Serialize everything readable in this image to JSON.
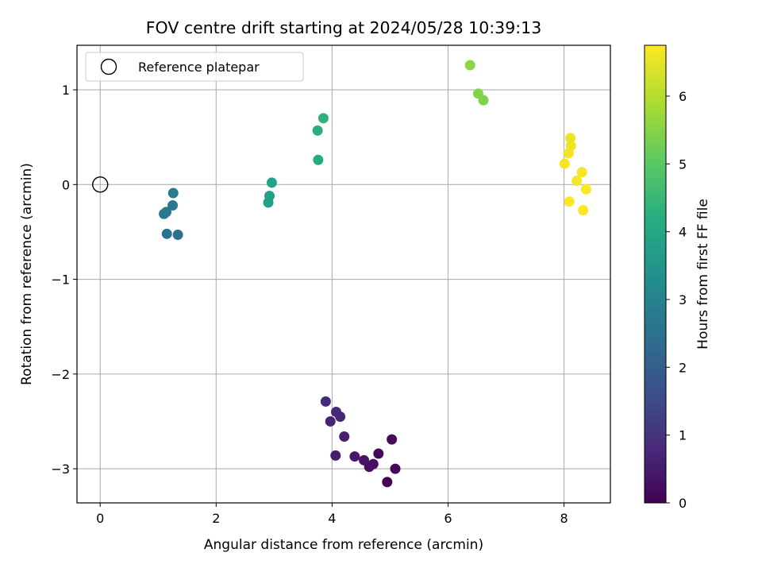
{
  "chart_data": {
    "type": "scatter",
    "title": "FOV centre drift starting at 2024/05/28 10:39:13",
    "xlabel": "Angular distance from reference (arcmin)",
    "ylabel": "Rotation from reference (arcmin)",
    "xlim": [
      -0.4,
      8.8
    ],
    "ylim": [
      -3.36,
      1.47
    ],
    "xticks": [
      0,
      2,
      4,
      6,
      8
    ],
    "yticks": [
      -3,
      -2,
      -1,
      0,
      1
    ],
    "xtick_labels": [
      "0",
      "2",
      "4",
      "6",
      "8"
    ],
    "ytick_labels": [
      "−3",
      "−2",
      "−1",
      "0",
      "1"
    ],
    "grid": true,
    "legend": {
      "label": "Reference platepar",
      "location": "upper left",
      "marker": "open-circle"
    },
    "reference_point": {
      "x": 0,
      "y": 0
    },
    "colorbar": {
      "label": "Hours from first FF file",
      "colormap": "viridis",
      "range": [
        0,
        6.75
      ],
      "ticks": [
        0,
        1,
        2,
        3,
        4,
        5,
        6
      ],
      "tick_labels": [
        "0",
        "1",
        "2",
        "3",
        "4",
        "5",
        "6"
      ]
    },
    "points": [
      {
        "x": 4.95,
        "y": -3.14,
        "hours": 0.05
      },
      {
        "x": 5.09,
        "y": -3.0,
        "hours": 0.1
      },
      {
        "x": 4.8,
        "y": -2.84,
        "hours": 0.15
      },
      {
        "x": 5.03,
        "y": -2.69,
        "hours": 0.2
      },
      {
        "x": 4.71,
        "y": -2.95,
        "hours": 0.25
      },
      {
        "x": 4.64,
        "y": -2.98,
        "hours": 0.3
      },
      {
        "x": 4.55,
        "y": -2.91,
        "hours": 0.35
      },
      {
        "x": 4.39,
        "y": -2.87,
        "hours": 0.45
      },
      {
        "x": 4.06,
        "y": -2.86,
        "hours": 0.55
      },
      {
        "x": 4.21,
        "y": -2.66,
        "hours": 0.6
      },
      {
        "x": 3.97,
        "y": -2.5,
        "hours": 0.7
      },
      {
        "x": 4.14,
        "y": -2.45,
        "hours": 0.75
      },
      {
        "x": 4.07,
        "y": -2.4,
        "hours": 0.8
      },
      {
        "x": 3.89,
        "y": -2.29,
        "hours": 0.85
      },
      {
        "x": 1.34,
        "y": -0.53,
        "hours": 2.5
      },
      {
        "x": 1.15,
        "y": -0.52,
        "hours": 2.55
      },
      {
        "x": 1.1,
        "y": -0.31,
        "hours": 2.65
      },
      {
        "x": 1.14,
        "y": -0.29,
        "hours": 2.7
      },
      {
        "x": 1.25,
        "y": -0.22,
        "hours": 2.75
      },
      {
        "x": 1.26,
        "y": -0.09,
        "hours": 2.8
      },
      {
        "x": 2.9,
        "y": -0.19,
        "hours": 3.8
      },
      {
        "x": 2.92,
        "y": -0.12,
        "hours": 3.85
      },
      {
        "x": 2.96,
        "y": 0.02,
        "hours": 3.9
      },
      {
        "x": 3.76,
        "y": 0.26,
        "hours": 4.1
      },
      {
        "x": 3.75,
        "y": 0.57,
        "hours": 4.2
      },
      {
        "x": 3.85,
        "y": 0.7,
        "hours": 4.3
      },
      {
        "x": 6.61,
        "y": 0.89,
        "hours": 5.45
      },
      {
        "x": 6.52,
        "y": 0.96,
        "hours": 5.5
      },
      {
        "x": 6.38,
        "y": 1.26,
        "hours": 5.6
      },
      {
        "x": 8.11,
        "y": 0.49,
        "hours": 6.55
      },
      {
        "x": 8.12,
        "y": 0.41,
        "hours": 6.6
      },
      {
        "x": 8.08,
        "y": 0.33,
        "hours": 6.62
      },
      {
        "x": 8.01,
        "y": 0.22,
        "hours": 6.65
      },
      {
        "x": 8.31,
        "y": 0.13,
        "hours": 6.68
      },
      {
        "x": 8.22,
        "y": 0.04,
        "hours": 6.7
      },
      {
        "x": 8.38,
        "y": -0.05,
        "hours": 6.72
      },
      {
        "x": 8.09,
        "y": -0.18,
        "hours": 6.73
      },
      {
        "x": 8.33,
        "y": -0.27,
        "hours": 6.75
      }
    ]
  }
}
